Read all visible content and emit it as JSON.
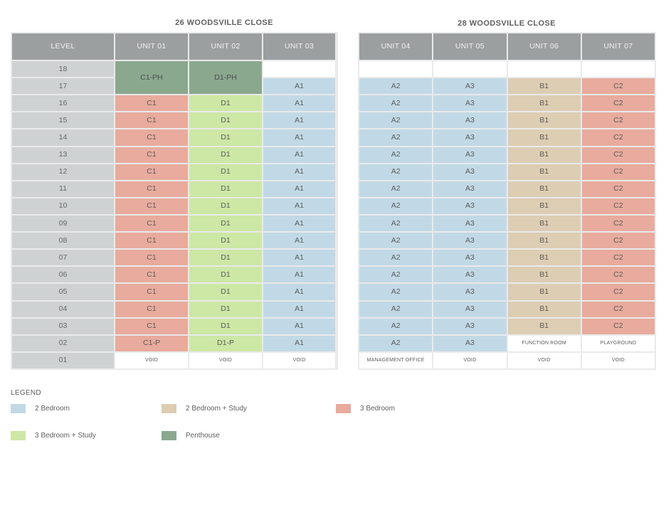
{
  "building_left": {
    "title": "26 WOODSVILLE CLOSE",
    "headers": [
      "LEVEL",
      "UNIT 01",
      "UNIT 02",
      "UNIT 03"
    ],
    "levels": [
      "18",
      "17",
      "16",
      "15",
      "14",
      "13",
      "12",
      "11",
      "10",
      "09",
      "08",
      "07",
      "06",
      "05",
      "04",
      "03",
      "02",
      "01"
    ],
    "unit01": {
      "penthouse": "C1-PH",
      "typical": "C1",
      "level02": "C1-P",
      "level01": "VOID"
    },
    "unit02": {
      "penthouse": "D1-PH",
      "typical": "D1",
      "level02": "D1-P",
      "level01": "VOID"
    },
    "unit03": {
      "typical": "A1",
      "level01": "VOID"
    }
  },
  "building_right": {
    "title": "28 WOODSVILLE CLOSE",
    "headers": [
      "UNIT 04",
      "UNIT 05",
      "UNIT 06",
      "UNIT 07"
    ],
    "unit04": {
      "typical": "A2",
      "level01": "MANAGEMENT OFFICE"
    },
    "unit05": {
      "typical": "A3",
      "level01": "VOID"
    },
    "unit06": {
      "typical": "B1",
      "level02": "FUNCTION ROOM",
      "level01": "VOID"
    },
    "unit07": {
      "typical": "C2",
      "level02": "PLAYGROUND",
      "level01": "VOID"
    }
  },
  "legend": {
    "title": "LEGEND",
    "items": [
      {
        "label": "2 Bedroom",
        "color": "#c1d9e6"
      },
      {
        "label": "2 Bedroom + Study",
        "color": "#ddcdb3"
      },
      {
        "label": "3 Bedroom",
        "color": "#e8ab9d"
      },
      {
        "label": "3 Bedroom + Study",
        "color": "#cde7a5"
      },
      {
        "label": "Penthouse",
        "color": "#8aa88e"
      }
    ]
  }
}
